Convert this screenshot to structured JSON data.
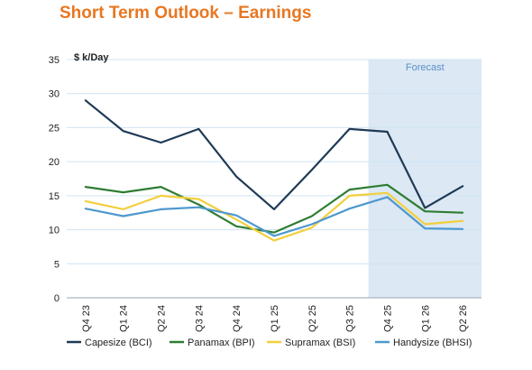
{
  "title": "Short Term Outlook – Earnings",
  "colors": {
    "title": "#e87722",
    "forecast_band": "#dce8f4",
    "forecast_text": "#5b8fc7",
    "grid": "#cfe3f3"
  },
  "chart_data": {
    "type": "line",
    "ylabel": "$ k/Day",
    "xlabel": "",
    "ylim": [
      0,
      35
    ],
    "yticks": [
      0,
      5,
      10,
      15,
      20,
      25,
      30,
      35
    ],
    "grid": true,
    "legend_position": "bottom",
    "forecast_label": "Forecast",
    "forecast_start": "Q4 25",
    "categories": [
      "Q4 23",
      "Q1 24",
      "Q2 24",
      "Q3 24",
      "Q4 24",
      "Q1 25",
      "Q2 25",
      "Q3 25",
      "Q4 25",
      "Q1 26",
      "Q2 26"
    ],
    "series": [
      {
        "name": "Capesize (BCI)",
        "color": "#1f3a56",
        "values": [
          29,
          24.5,
          22.8,
          24.8,
          17.8,
          13,
          18.8,
          24.8,
          24.4,
          13.2,
          16.4
        ]
      },
      {
        "name": "Panamax (BPI)",
        "color": "#2e7d32",
        "values": [
          16.3,
          15.5,
          16.3,
          13.7,
          10.5,
          9.6,
          12,
          15.9,
          16.6,
          12.7,
          12.5
        ]
      },
      {
        "name": "Supramax (BSI)",
        "color": "#f2cf3c",
        "values": [
          14.2,
          13,
          15,
          14.5,
          11.5,
          8.4,
          10.3,
          15,
          15.4,
          10.8,
          11.3
        ]
      },
      {
        "name": "Handysize (BHSI)",
        "color": "#4e98cf",
        "values": [
          13.1,
          12,
          13,
          13.3,
          12.1,
          9.1,
          10.8,
          13.1,
          14.8,
          10.2,
          10.1
        ]
      }
    ]
  }
}
